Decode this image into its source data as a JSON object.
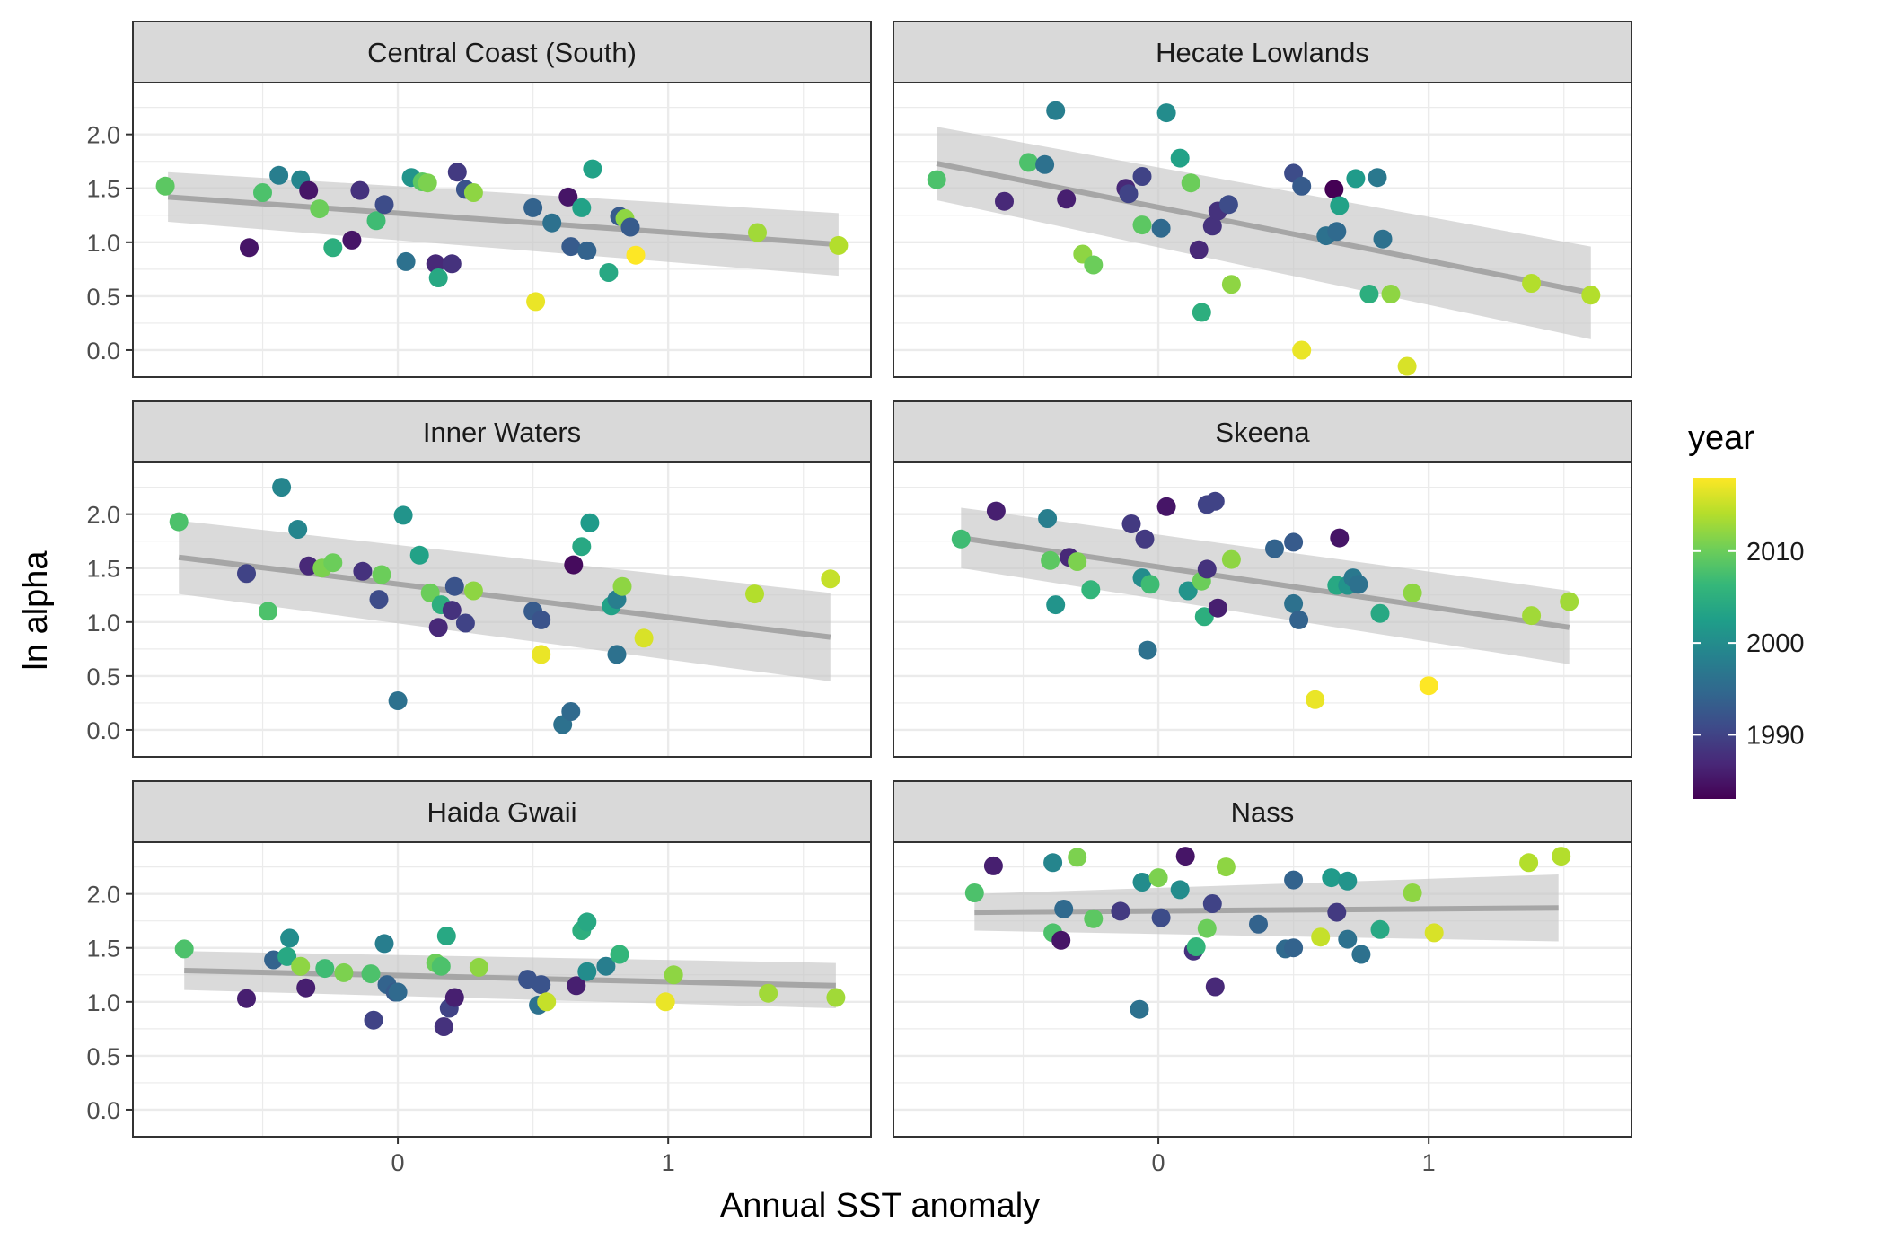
{
  "chart_data": {
    "type": "scatter",
    "xlabel": "Annual SST anomaly",
    "ylabel": "ln alpha",
    "x_ticks": [
      0,
      1
    ],
    "y_ticks": [
      0.0,
      0.5,
      1.0,
      1.5,
      2.0
    ],
    "y_tick_labels": [
      "0.0",
      "0.5",
      "1.0",
      "1.5",
      "2.0"
    ],
    "xlim": [
      -0.98,
      1.75
    ],
    "ylim": [
      -0.25,
      2.48
    ],
    "facet_layout": "3 rows x 2 columns",
    "trend": "linear fit with grey confidence band",
    "colors": {
      "band": "#c6c6c6",
      "line": "#a6a6a6",
      "strip": "#d9d9d9",
      "grid": "#ebebeb",
      "panel_border": "#333333"
    },
    "legend": {
      "title": "year",
      "position": "right",
      "range": [
        1983,
        2018
      ],
      "breaks": [
        1990,
        2000,
        2010
      ],
      "palette": [
        "#440154",
        "#482878",
        "#3e4a89",
        "#31688e",
        "#26828e",
        "#1f9e89",
        "#35b779",
        "#6ece58",
        "#b5de2b",
        "#fde725"
      ]
    },
    "panels": [
      {
        "title": "Central Coast (South)",
        "fit": {
          "x0": -0.85,
          "y0": 1.42,
          "x1": 1.63,
          "y1": 0.98,
          "se0": 0.23,
          "se1": 0.29
        },
        "points": [
          [
            -0.86,
            1.52,
            2009
          ],
          [
            -0.55,
            0.95,
            1985
          ],
          [
            -0.5,
            1.46,
            2008
          ],
          [
            -0.44,
            1.62,
            1998
          ],
          [
            -0.36,
            1.58,
            1999
          ],
          [
            -0.33,
            1.48,
            1985
          ],
          [
            -0.29,
            1.31,
            2010
          ],
          [
            -0.24,
            0.95,
            2005
          ],
          [
            -0.17,
            1.02,
            1985
          ],
          [
            -0.14,
            1.48,
            1988
          ],
          [
            -0.08,
            1.2,
            2007
          ],
          [
            -0.05,
            1.35,
            1991
          ],
          [
            0.03,
            0.82,
            1996
          ],
          [
            0.05,
            1.6,
            2001
          ],
          [
            0.09,
            1.56,
            2009
          ],
          [
            0.11,
            1.55,
            2011
          ],
          [
            0.14,
            0.8,
            1987
          ],
          [
            0.15,
            0.67,
            2004
          ],
          [
            0.2,
            0.8,
            1988
          ],
          [
            0.22,
            1.65,
            1989
          ],
          [
            0.25,
            1.49,
            1992
          ],
          [
            0.28,
            1.46,
            2012
          ],
          [
            0.5,
            1.32,
            1994
          ],
          [
            0.51,
            0.45,
            2017
          ],
          [
            0.57,
            1.18,
            1996
          ],
          [
            0.63,
            1.42,
            1985
          ],
          [
            0.64,
            0.96,
            1993
          ],
          [
            0.68,
            1.32,
            2003
          ],
          [
            0.7,
            0.92,
            1994
          ],
          [
            0.72,
            1.68,
            2003
          ],
          [
            0.78,
            0.72,
            2004
          ],
          [
            0.82,
            1.24,
            1993
          ],
          [
            0.84,
            1.22,
            2012
          ],
          [
            0.86,
            1.14,
            1993
          ],
          [
            0.88,
            0.88,
            2018
          ],
          [
            1.33,
            1.09,
            2013
          ],
          [
            1.63,
            0.97,
            2014
          ]
        ]
      },
      {
        "title": "Hecate Lowlands",
        "fit": {
          "x0": -0.82,
          "y0": 1.73,
          "x1": 1.6,
          "y1": 0.53,
          "se0": 0.34,
          "se1": 0.43
        },
        "points": [
          [
            -0.82,
            1.58,
            2008
          ],
          [
            -0.57,
            1.38,
            1987
          ],
          [
            -0.48,
            1.74,
            2008
          ],
          [
            -0.42,
            1.72,
            1996
          ],
          [
            -0.38,
            2.22,
            1998
          ],
          [
            -0.34,
            1.4,
            1986
          ],
          [
            -0.28,
            0.89,
            2012
          ],
          [
            -0.24,
            0.79,
            2010
          ],
          [
            -0.12,
            1.5,
            1987
          ],
          [
            -0.11,
            1.45,
            1990
          ],
          [
            -0.06,
            1.61,
            1990
          ],
          [
            -0.06,
            1.16,
            2009
          ],
          [
            0.01,
            1.13,
            1995
          ],
          [
            0.03,
            2.2,
            2000
          ],
          [
            0.08,
            1.78,
            2003
          ],
          [
            0.12,
            1.55,
            2010
          ],
          [
            0.15,
            0.93,
            1987
          ],
          [
            0.16,
            0.35,
            2005
          ],
          [
            0.2,
            1.15,
            1988
          ],
          [
            0.22,
            1.29,
            1988
          ],
          [
            0.26,
            1.35,
            1991
          ],
          [
            0.27,
            0.61,
            2012
          ],
          [
            0.5,
            1.64,
            1991
          ],
          [
            0.53,
            1.52,
            1993
          ],
          [
            0.53,
            0.0,
            2017
          ],
          [
            0.62,
            1.06,
            1996
          ],
          [
            0.65,
            1.49,
            1983
          ],
          [
            0.66,
            1.1,
            1995
          ],
          [
            0.67,
            1.34,
            2003
          ],
          [
            0.73,
            1.59,
            2002
          ],
          [
            0.78,
            0.52,
            2005
          ],
          [
            0.81,
            1.6,
            1997
          ],
          [
            0.83,
            1.03,
            1996
          ],
          [
            0.86,
            0.52,
            2012
          ],
          [
            0.92,
            -0.15,
            2016
          ],
          [
            1.38,
            0.62,
            2014
          ],
          [
            1.6,
            0.51,
            2014
          ]
        ]
      },
      {
        "title": "Inner Waters",
        "fit": {
          "x0": -0.81,
          "y0": 1.6,
          "x1": 1.6,
          "y1": 0.86,
          "se0": 0.34,
          "se1": 0.41
        },
        "points": [
          [
            -0.81,
            1.93,
            2008
          ],
          [
            -0.56,
            1.45,
            1990
          ],
          [
            -0.48,
            1.1,
            2008
          ],
          [
            -0.43,
            2.25,
            1999
          ],
          [
            -0.37,
            1.86,
            1999
          ],
          [
            -0.33,
            1.52,
            1987
          ],
          [
            -0.28,
            1.5,
            2011
          ],
          [
            -0.24,
            1.55,
            2010
          ],
          [
            -0.13,
            1.47,
            1988
          ],
          [
            -0.07,
            1.21,
            1991
          ],
          [
            -0.06,
            1.44,
            2010
          ],
          [
            0.0,
            0.27,
            1996
          ],
          [
            0.02,
            1.99,
            2001
          ],
          [
            0.08,
            1.62,
            2003
          ],
          [
            0.12,
            1.27,
            2010
          ],
          [
            0.15,
            0.95,
            1987
          ],
          [
            0.16,
            1.16,
            2005
          ],
          [
            0.2,
            1.11,
            1988
          ],
          [
            0.21,
            1.33,
            1992
          ],
          [
            0.25,
            0.99,
            1990
          ],
          [
            0.28,
            1.29,
            2012
          ],
          [
            0.5,
            1.1,
            1993
          ],
          [
            0.53,
            0.7,
            2017
          ],
          [
            0.53,
            1.02,
            1992
          ],
          [
            0.61,
            0.05,
            1996
          ],
          [
            0.64,
            0.17,
            1995
          ],
          [
            0.65,
            1.53,
            1984
          ],
          [
            0.68,
            1.7,
            2004
          ],
          [
            0.71,
            1.92,
            2002
          ],
          [
            0.79,
            1.15,
            2003
          ],
          [
            0.81,
            1.21,
            1998
          ],
          [
            0.81,
            0.7,
            1996
          ],
          [
            0.83,
            1.33,
            2012
          ],
          [
            0.91,
            0.85,
            2016
          ],
          [
            1.32,
            1.26,
            2014
          ],
          [
            1.6,
            1.4,
            2015
          ]
        ]
      },
      {
        "title": "Skeena",
        "fit": {
          "x0": -0.73,
          "y0": 1.78,
          "x1": 1.52,
          "y1": 0.95,
          "se0": 0.28,
          "se1": 0.34
        },
        "points": [
          [
            -0.73,
            1.77,
            2007
          ],
          [
            -0.6,
            2.03,
            1986
          ],
          [
            -0.41,
            1.96,
            1998
          ],
          [
            -0.4,
            1.57,
            2009
          ],
          [
            -0.38,
            1.16,
            2001
          ],
          [
            -0.33,
            1.6,
            1987
          ],
          [
            -0.3,
            1.56,
            2011
          ],
          [
            -0.25,
            1.3,
            2006
          ],
          [
            -0.1,
            1.91,
            1989
          ],
          [
            -0.05,
            1.77,
            1989
          ],
          [
            -0.06,
            1.41,
            2000
          ],
          [
            -0.04,
            0.74,
            1996
          ],
          [
            -0.03,
            1.35,
            2007
          ],
          [
            0.03,
            2.07,
            1985
          ],
          [
            0.11,
            1.29,
            2001
          ],
          [
            0.16,
            1.38,
            2010
          ],
          [
            0.17,
            1.05,
            2005
          ],
          [
            0.18,
            2.09,
            1990
          ],
          [
            0.18,
            1.49,
            1988
          ],
          [
            0.21,
            2.12,
            1990
          ],
          [
            0.22,
            1.13,
            1986
          ],
          [
            0.27,
            1.58,
            2012
          ],
          [
            0.43,
            1.68,
            1994
          ],
          [
            0.5,
            1.74,
            1993
          ],
          [
            0.5,
            1.17,
            1996
          ],
          [
            0.52,
            1.02,
            1994
          ],
          [
            0.58,
            0.28,
            2017
          ],
          [
            0.66,
            1.34,
            2004
          ],
          [
            0.67,
            1.78,
            1985
          ],
          [
            0.7,
            1.34,
            2001
          ],
          [
            0.72,
            1.41,
            1997
          ],
          [
            0.74,
            1.35,
            1996
          ],
          [
            0.82,
            1.08,
            2004
          ],
          [
            0.94,
            1.27,
            2012
          ],
          [
            1.0,
            0.41,
            2018
          ],
          [
            1.38,
            1.06,
            2013
          ],
          [
            1.52,
            1.19,
            2013
          ]
        ]
      },
      {
        "title": "Haida Gwaii",
        "fit": {
          "x0": -0.79,
          "y0": 1.29,
          "x1": 1.62,
          "y1": 1.15,
          "se0": 0.18,
          "se1": 0.21
        },
        "points": [
          [
            -0.79,
            1.49,
            2008
          ],
          [
            -0.56,
            1.03,
            1986
          ],
          [
            -0.46,
            1.39,
            1994
          ],
          [
            -0.41,
            1.42,
            2004
          ],
          [
            -0.4,
            1.59,
            2000
          ],
          [
            -0.36,
            1.33,
            2012
          ],
          [
            -0.34,
            1.13,
            1986
          ],
          [
            -0.27,
            1.31,
            2007
          ],
          [
            -0.2,
            1.27,
            2011
          ],
          [
            -0.1,
            1.26,
            2008
          ],
          [
            -0.09,
            0.83,
            1990
          ],
          [
            -0.05,
            1.54,
            1998
          ],
          [
            -0.04,
            1.16,
            1994
          ],
          [
            -0.01,
            1.09,
            1993
          ],
          [
            0.0,
            1.09,
            1995
          ],
          [
            0.14,
            1.36,
            2010
          ],
          [
            0.16,
            1.33,
            2008
          ],
          [
            0.17,
            0.77,
            1988
          ],
          [
            0.18,
            1.61,
            2004
          ],
          [
            0.19,
            0.94,
            1990
          ],
          [
            0.21,
            1.04,
            1986
          ],
          [
            0.3,
            1.32,
            2012
          ],
          [
            0.48,
            1.21,
            1992
          ],
          [
            0.52,
            0.97,
            1996
          ],
          [
            0.53,
            1.16,
            1992
          ],
          [
            0.55,
            1.0,
            2015
          ],
          [
            0.66,
            1.15,
            1986
          ],
          [
            0.68,
            1.66,
            2005
          ],
          [
            0.7,
            1.74,
            2004
          ],
          [
            0.7,
            1.28,
            2000
          ],
          [
            0.77,
            1.33,
            1998
          ],
          [
            0.82,
            1.44,
            2006
          ],
          [
            0.99,
            1.0,
            2017
          ],
          [
            1.02,
            1.25,
            2012
          ],
          [
            1.37,
            1.08,
            2013
          ],
          [
            1.62,
            1.04,
            2013
          ]
        ]
      },
      {
        "title": "Nass",
        "fit": {
          "x0": -0.68,
          "y0": 1.83,
          "x1": 1.48,
          "y1": 1.87,
          "se0": 0.17,
          "se1": 0.31
        },
        "points": [
          [
            -0.68,
            2.01,
            2008
          ],
          [
            -0.61,
            2.26,
            1986
          ],
          [
            -0.39,
            2.29,
            1999
          ],
          [
            -0.39,
            1.64,
            2008
          ],
          [
            -0.36,
            1.57,
            1985
          ],
          [
            -0.35,
            1.86,
            1995
          ],
          [
            -0.3,
            2.34,
            2011
          ],
          [
            -0.24,
            1.77,
            2009
          ],
          [
            -0.14,
            1.84,
            1989
          ],
          [
            -0.06,
            2.11,
            2000
          ],
          [
            -0.07,
            0.93,
            1996
          ],
          [
            0.0,
            2.15,
            2011
          ],
          [
            0.01,
            1.78,
            1991
          ],
          [
            0.08,
            2.04,
            2000
          ],
          [
            0.1,
            2.35,
            1985
          ],
          [
            0.13,
            1.47,
            1988
          ],
          [
            0.14,
            1.51,
            2006
          ],
          [
            0.18,
            1.68,
            2010
          ],
          [
            0.2,
            1.91,
            1990
          ],
          [
            0.21,
            1.14,
            1987
          ],
          [
            0.25,
            2.25,
            2012
          ],
          [
            0.37,
            1.72,
            1994
          ],
          [
            0.47,
            1.49,
            1995
          ],
          [
            0.5,
            1.5,
            1994
          ],
          [
            0.5,
            2.13,
            1994
          ],
          [
            0.6,
            1.6,
            2015
          ],
          [
            0.64,
            2.15,
            2002
          ],
          [
            0.66,
            1.83,
            1989
          ],
          [
            0.7,
            2.12,
            2001
          ],
          [
            0.7,
            1.58,
            1996
          ],
          [
            0.75,
            1.44,
            1996
          ],
          [
            0.82,
            1.67,
            2004
          ],
          [
            0.94,
            2.01,
            2012
          ],
          [
            1.02,
            1.64,
            2016
          ],
          [
            1.37,
            2.29,
            2014
          ],
          [
            1.49,
            2.35,
            2014
          ]
        ]
      }
    ]
  }
}
